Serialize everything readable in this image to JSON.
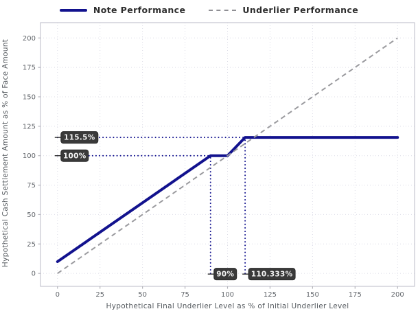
{
  "legend": {
    "note_label": "Note Performance",
    "underlier_label": "Underlier Performance"
  },
  "chart_data": {
    "type": "line",
    "xlabel": "Hypothetical Final Underlier Level as % of Initial Underlier Level",
    "ylabel": "Hypothetical Cash Settlement Amount as % of Face Amount",
    "xlim": [
      -10,
      210
    ],
    "ylim": [
      -11,
      213
    ],
    "xticks": [
      0,
      25,
      50,
      75,
      100,
      125,
      150,
      175,
      200
    ],
    "yticks": [
      0,
      25,
      50,
      75,
      100,
      125,
      150,
      175,
      200
    ],
    "grid": true,
    "legend_position": "top-center",
    "series": [
      {
        "name": "Note Performance",
        "style": "solid",
        "points": [
          [
            0,
            10
          ],
          [
            90,
            100
          ],
          [
            100,
            100
          ],
          [
            110.333,
            115.5
          ],
          [
            200,
            115.5
          ]
        ]
      },
      {
        "name": "Underlier Performance",
        "style": "dashed",
        "points": [
          [
            0,
            0
          ],
          [
            200,
            200
          ]
        ]
      }
    ],
    "annotations": [
      {
        "label": "115.5%",
        "type": "hline",
        "y": 115.5,
        "x_end": 110.333
      },
      {
        "label": "100%",
        "type": "hline",
        "y": 100,
        "x_end": 90
      },
      {
        "label": "90%",
        "type": "vline",
        "x": 90,
        "y_end": 100
      },
      {
        "label": "110.333%",
        "type": "vline",
        "x": 110.333,
        "y_end": 115.5
      }
    ],
    "colors": {
      "note_line": "#12128e",
      "underlier_line": "#9a9a9e",
      "dotted_guide": "#12128e",
      "grid": "#dcdce6",
      "plot_border": "#c6c6d0",
      "tick_mark": "#b3b3ba",
      "tick_label": "#63676c",
      "axis_title": "#555a5f",
      "annotation_bg": "#3a3a3a",
      "annotation_border": "#2a2a2a",
      "annotation_text": "#f4f4f4",
      "background": "#ffffff"
    }
  }
}
